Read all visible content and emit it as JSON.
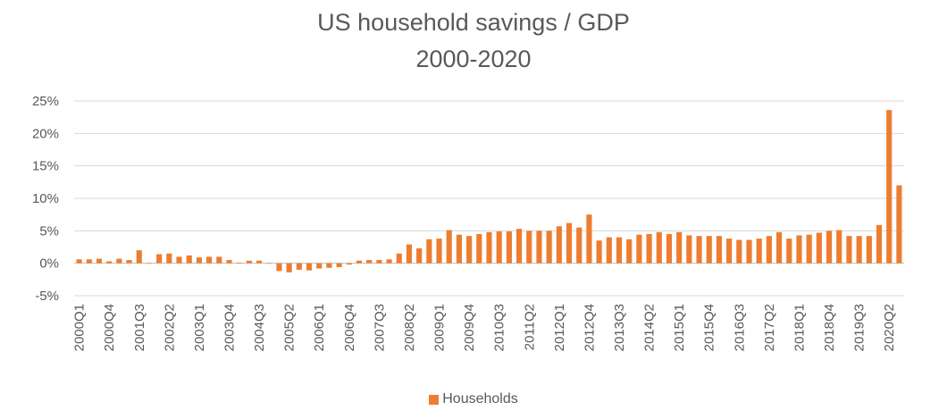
{
  "chart_data": {
    "type": "bar",
    "title": "US household savings / GDP",
    "subtitle": "2000-2020",
    "xlabel": "",
    "ylabel": "",
    "ylim": [
      -5,
      25
    ],
    "y_ticks": [
      -5,
      0,
      5,
      10,
      15,
      20,
      25
    ],
    "y_tick_labels": [
      "-5%",
      "0%",
      "5%",
      "10%",
      "15%",
      "20%",
      "25%"
    ],
    "grid": true,
    "legend_position": "bottom",
    "color": "#ED7D31",
    "x_tick_labels": [
      "2000Q1",
      "2000Q4",
      "2001Q3",
      "2002Q2",
      "2003Q1",
      "2003Q4",
      "2004Q3",
      "2005Q2",
      "2006Q1",
      "2006Q4",
      "2007Q3",
      "2008Q2",
      "2009Q1",
      "2009Q4",
      "2010Q3",
      "2011Q2",
      "2012Q1",
      "2012Q4",
      "2013Q3",
      "2014Q2",
      "2015Q1",
      "2015Q4",
      "2016Q3",
      "2017Q2",
      "2018Q1",
      "2018Q4",
      "2019Q3",
      "2020Q2"
    ],
    "categories": [
      "2000Q1",
      "2000Q2",
      "2000Q3",
      "2000Q4",
      "2001Q1",
      "2001Q2",
      "2001Q3",
      "2001Q4",
      "2002Q1",
      "2002Q2",
      "2002Q3",
      "2002Q4",
      "2003Q1",
      "2003Q2",
      "2003Q3",
      "2003Q4",
      "2004Q1",
      "2004Q2",
      "2004Q3",
      "2004Q4",
      "2005Q1",
      "2005Q2",
      "2005Q3",
      "2005Q4",
      "2006Q1",
      "2006Q2",
      "2006Q3",
      "2006Q4",
      "2007Q1",
      "2007Q2",
      "2007Q3",
      "2007Q4",
      "2008Q1",
      "2008Q2",
      "2008Q3",
      "2008Q4",
      "2009Q1",
      "2009Q2",
      "2009Q3",
      "2009Q4",
      "2010Q1",
      "2010Q2",
      "2010Q3",
      "2010Q4",
      "2011Q1",
      "2011Q2",
      "2011Q3",
      "2011Q4",
      "2012Q1",
      "2012Q2",
      "2012Q3",
      "2012Q4",
      "2013Q1",
      "2013Q2",
      "2013Q3",
      "2013Q4",
      "2014Q1",
      "2014Q2",
      "2014Q3",
      "2014Q4",
      "2015Q1",
      "2015Q2",
      "2015Q3",
      "2015Q4",
      "2016Q1",
      "2016Q2",
      "2016Q3",
      "2016Q4",
      "2017Q1",
      "2017Q2",
      "2017Q3",
      "2017Q4",
      "2018Q1",
      "2018Q2",
      "2018Q3",
      "2018Q4",
      "2019Q1",
      "2019Q2",
      "2019Q3",
      "2019Q4",
      "2020Q1",
      "2020Q2",
      "2020Q3"
    ],
    "series": [
      {
        "name": "Households",
        "values": [
          0.6,
          0.6,
          0.7,
          0.3,
          0.7,
          0.5,
          2.0,
          0.0,
          1.4,
          1.5,
          1.0,
          1.2,
          0.9,
          1.0,
          1.0,
          0.5,
          0.1,
          0.4,
          0.4,
          0.0,
          -1.2,
          -1.4,
          -1.0,
          -1.1,
          -0.8,
          -0.7,
          -0.6,
          -0.2,
          0.4,
          0.5,
          0.5,
          0.6,
          1.5,
          2.9,
          2.3,
          3.7,
          3.8,
          5.1,
          4.4,
          4.2,
          4.5,
          4.8,
          4.9,
          4.9,
          5.3,
          5.0,
          5.0,
          5.0,
          5.7,
          6.2,
          5.5,
          7.5,
          3.5,
          4.0,
          4.0,
          3.7,
          4.4,
          4.5,
          4.8,
          4.5,
          4.8,
          4.3,
          4.2,
          4.2,
          4.2,
          3.8,
          3.6,
          3.6,
          3.8,
          4.2,
          4.8,
          3.8,
          4.3,
          4.4,
          4.7,
          5.0,
          5.1,
          4.2,
          4.2,
          4.2,
          5.9,
          23.6,
          12.0
        ]
      }
    ],
    "legend": [
      "Households"
    ]
  }
}
